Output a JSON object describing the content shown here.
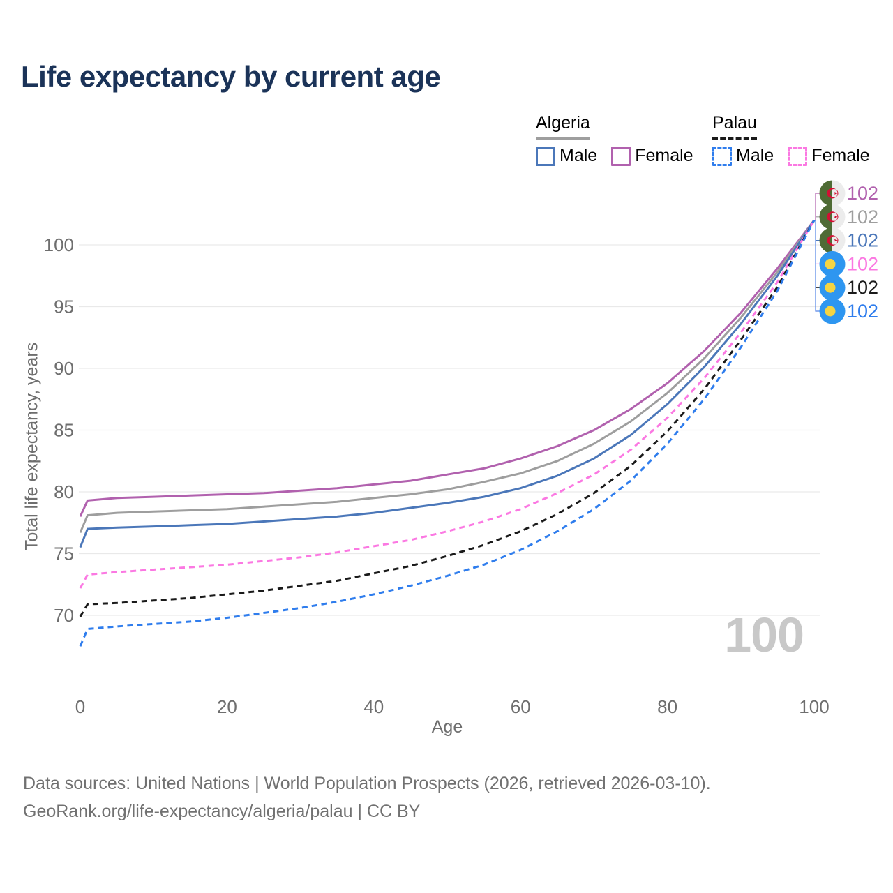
{
  "title": "Life expectancy by current age",
  "colors": {
    "title": "#1b3358",
    "legend_text": "#24395c",
    "axis_text": "#6e6e6e",
    "grid": "#e9e9e9",
    "watermark": "#c8c8c8",
    "footer_text": "#717171",
    "leader_bottom": "#5585e6"
  },
  "legend": {
    "groups": [
      {
        "country": "Algeria",
        "line_style": "solid",
        "underline_color": "#9e9e9e",
        "items": [
          {
            "label": "Male",
            "color": "#4b77b9"
          },
          {
            "label": "Female",
            "color": "#b161ae"
          }
        ]
      },
      {
        "country": "Palau",
        "line_style": "dashed",
        "underline_color": "#1a1a1a",
        "items": [
          {
            "label": "Male",
            "color": "#2f7ded"
          },
          {
            "label": "Female",
            "color": "#fb78e2"
          }
        ]
      }
    ]
  },
  "chart_data": {
    "type": "line",
    "title": "Life expectancy by current age",
    "xlabel": "Age",
    "ylabel": "Total life expectancy, years",
    "xticks": [
      0,
      20,
      40,
      60,
      80,
      100
    ],
    "yticks": [
      70,
      75,
      80,
      85,
      90,
      95,
      100
    ],
    "xlim": [
      0,
      100
    ],
    "ylim": [
      66,
      103
    ],
    "grid": "horizontal",
    "x": [
      0,
      1,
      5,
      10,
      15,
      20,
      25,
      30,
      35,
      40,
      45,
      50,
      55,
      60,
      65,
      70,
      75,
      80,
      85,
      90,
      95,
      100
    ],
    "series": [
      {
        "name": "Algeria Female",
        "country": "Algeria",
        "sex": "female",
        "color": "#b161ae",
        "dash": "solid",
        "flag": "algeria",
        "end_label": "102",
        "values": [
          78.0,
          79.3,
          79.5,
          79.6,
          79.7,
          79.8,
          79.9,
          80.1,
          80.3,
          80.6,
          80.9,
          81.4,
          81.9,
          82.7,
          83.7,
          85.0,
          86.7,
          88.8,
          91.4,
          94.5,
          98.1,
          102
        ]
      },
      {
        "name": "Algeria Total",
        "country": "Algeria",
        "sex": "both",
        "color": "#9e9e9e",
        "dash": "solid",
        "flag": "algeria",
        "end_label": "102",
        "values": [
          76.7,
          78.1,
          78.3,
          78.4,
          78.5,
          78.6,
          78.8,
          79.0,
          79.2,
          79.5,
          79.8,
          80.2,
          80.8,
          81.5,
          82.5,
          83.9,
          85.7,
          88.0,
          90.8,
          94.1,
          97.8,
          102
        ]
      },
      {
        "name": "Algeria Male",
        "country": "Algeria",
        "sex": "male",
        "color": "#4b77b9",
        "dash": "solid",
        "flag": "algeria",
        "end_label": "102",
        "values": [
          75.5,
          77.0,
          77.1,
          77.2,
          77.3,
          77.4,
          77.6,
          77.8,
          78.0,
          78.3,
          78.7,
          79.1,
          79.6,
          80.3,
          81.3,
          82.7,
          84.6,
          87.1,
          90.1,
          93.6,
          97.5,
          102
        ]
      },
      {
        "name": "Palau Female",
        "country": "Palau",
        "sex": "female",
        "color": "#fb78e2",
        "dash": "dashed",
        "flag": "palau",
        "end_label": "102",
        "values": [
          72.2,
          73.3,
          73.5,
          73.7,
          73.9,
          74.1,
          74.4,
          74.7,
          75.1,
          75.6,
          76.1,
          76.8,
          77.6,
          78.6,
          79.9,
          81.4,
          83.4,
          86.0,
          89.2,
          92.9,
          97.0,
          102
        ]
      },
      {
        "name": "Palau Total",
        "country": "Palau",
        "sex": "both",
        "color": "#1a1a1a",
        "dash": "dashed",
        "flag": "palau",
        "end_label": "102",
        "values": [
          69.9,
          70.9,
          71.0,
          71.2,
          71.4,
          71.7,
          72.0,
          72.4,
          72.8,
          73.4,
          74.0,
          74.8,
          75.7,
          76.8,
          78.2,
          79.9,
          82.1,
          84.9,
          88.3,
          92.3,
          96.6,
          102
        ]
      },
      {
        "name": "Palau Male",
        "country": "Palau",
        "sex": "male",
        "color": "#2f7ded",
        "dash": "dashed",
        "flag": "palau",
        "end_label": "102",
        "values": [
          67.5,
          68.9,
          69.1,
          69.3,
          69.5,
          69.8,
          70.2,
          70.6,
          71.1,
          71.7,
          72.4,
          73.2,
          74.1,
          75.3,
          76.8,
          78.6,
          80.9,
          83.9,
          87.5,
          91.7,
          96.3,
          102
        ]
      }
    ],
    "flag_colors": {
      "algeria_green": "#4f6b35",
      "algeria_white": "#ececec",
      "algeria_red": "#d21034",
      "palau_blue": "#2e96f0",
      "palau_yellow": "#f5d442"
    }
  },
  "annotations": {
    "current_age": "100"
  },
  "footer": {
    "line1": "Data sources: United Nations | World Population Prospects (2026, retrieved 2026-03-10).",
    "line2": "GeoRank.org/life-expectancy/algeria/palau | CC BY"
  }
}
